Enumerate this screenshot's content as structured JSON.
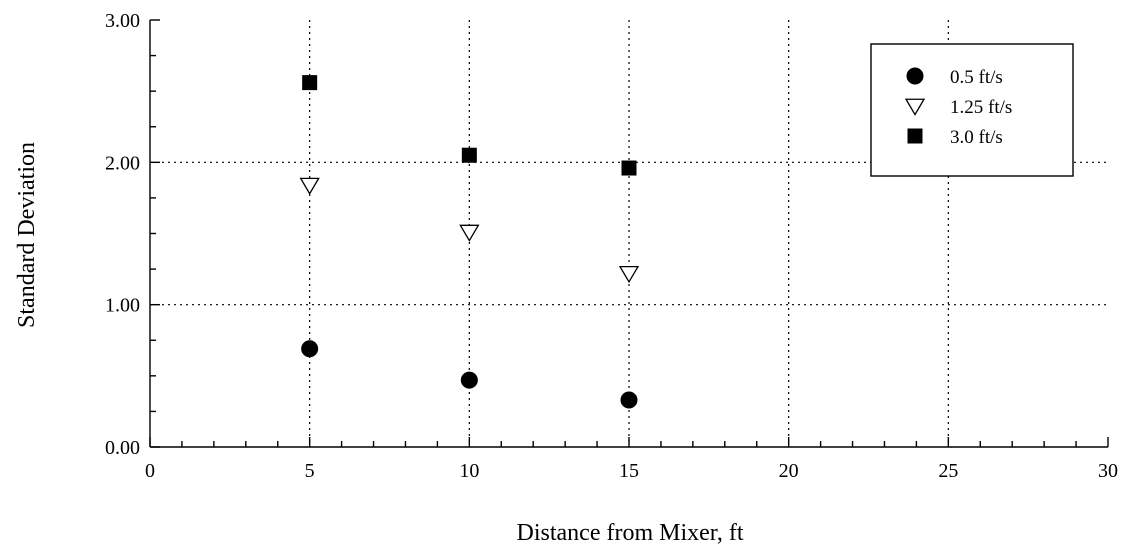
{
  "chart_data": {
    "type": "scatter",
    "xlabel": "Distance from Mixer, ft",
    "ylabel": "Standard Deviation",
    "xlim": [
      0,
      30
    ],
    "ylim": [
      0,
      3
    ],
    "x_ticks": [
      "0",
      "5",
      "10",
      "15",
      "20",
      "25",
      "30"
    ],
    "y_ticks": [
      "0.00",
      "1.00",
      "2.00",
      "3.00"
    ],
    "grid": "dotted",
    "legend_position": "top-right",
    "series": [
      {
        "name": "0.5 ft/s",
        "marker": "filled-circle",
        "color": "#000000",
        "points": [
          {
            "x": 5,
            "y": 0.69
          },
          {
            "x": 10,
            "y": 0.47
          },
          {
            "x": 15,
            "y": 0.33
          }
        ]
      },
      {
        "name": "1.25 ft/s",
        "marker": "open-triangle-down",
        "color": "#000000",
        "points": [
          {
            "x": 5,
            "y": 1.84
          },
          {
            "x": 10,
            "y": 1.51
          },
          {
            "x": 15,
            "y": 1.22
          }
        ]
      },
      {
        "name": "3.0 ft/s",
        "marker": "filled-square",
        "color": "#000000",
        "points": [
          {
            "x": 5,
            "y": 2.56
          },
          {
            "x": 10,
            "y": 2.05
          },
          {
            "x": 15,
            "y": 1.96
          }
        ]
      }
    ]
  }
}
